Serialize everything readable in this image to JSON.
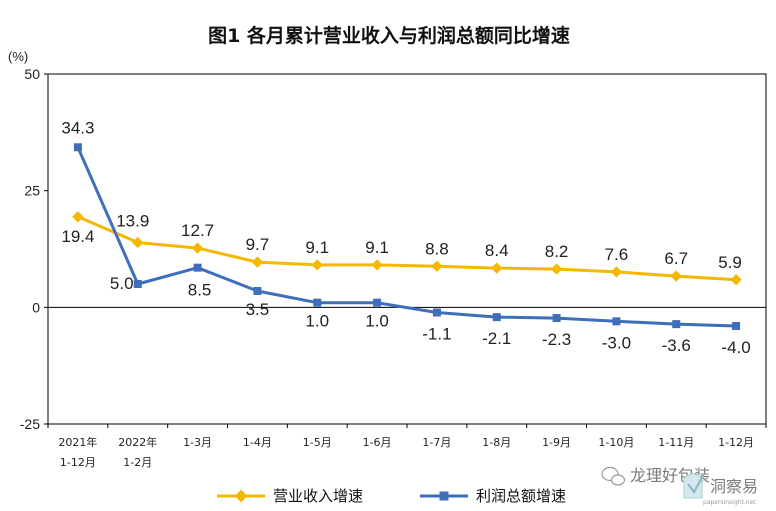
{
  "chart_data": {
    "type": "line",
    "title": "图1  各月累计营业收入与利润总额同比增速",
    "unit_label": "(%)",
    "ylim": [
      -25,
      50
    ],
    "yticks": [
      50,
      25,
      0,
      -25
    ],
    "categories": [
      [
        "2021年",
        "1-12月"
      ],
      [
        "2022年",
        "1-2月"
      ],
      [
        "1-3月"
      ],
      [
        "1-4月"
      ],
      [
        "1-5月"
      ],
      [
        "1-6月"
      ],
      [
        "1-7月"
      ],
      [
        "1-8月"
      ],
      [
        "1-9月"
      ],
      [
        "1-10月"
      ],
      [
        "1-11月"
      ],
      [
        "1-12月"
      ]
    ],
    "series": [
      {
        "name": "营业收入增速",
        "color": "#F5B800",
        "marker": "diamond",
        "values": [
          19.4,
          13.9,
          12.7,
          9.7,
          9.1,
          9.1,
          8.8,
          8.4,
          8.2,
          7.6,
          6.7,
          5.9
        ],
        "labels": [
          "19.4",
          "13.9",
          "12.7",
          "9.7",
          "9.1",
          "9.1",
          "8.8",
          "8.4",
          "8.2",
          "7.6",
          "6.7",
          "5.9"
        ]
      },
      {
        "name": "利润总额增速",
        "color": "#3F6EBA",
        "marker": "square",
        "values": [
          34.3,
          5.0,
          8.5,
          3.5,
          1.0,
          1.0,
          -1.1,
          -2.1,
          -2.3,
          -3.0,
          -3.6,
          -4.0
        ],
        "labels": [
          "34.3",
          "5.0",
          "8.5",
          "3.5",
          "1.0",
          "1.0",
          "-1.1",
          "-2.1",
          "-2.3",
          "-3.0",
          "-3.6",
          "-4.0"
        ]
      }
    ],
    "legend_position": "bottom"
  },
  "watermark": {
    "text": "龙理好包装",
    "logo_text": "洞察易",
    "logo_url": "papersinsight.net"
  }
}
